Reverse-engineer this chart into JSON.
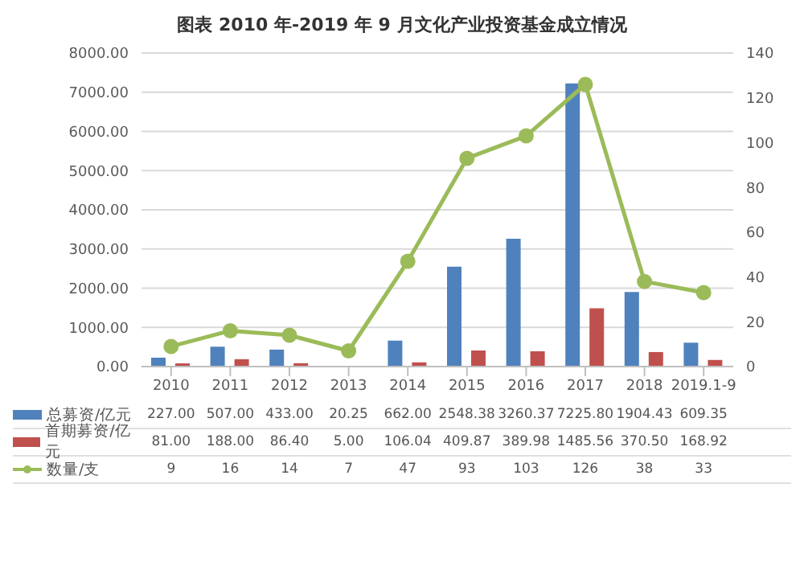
{
  "chart_data": {
    "type": "bar",
    "title": "图表  2010 年-2019 年 9 月文化产业投资基金成立情况",
    "categories": [
      "2010",
      "2011",
      "2012",
      "2013",
      "2014",
      "2015",
      "2016",
      "2017",
      "2018",
      "2019.1-9"
    ],
    "series": [
      {
        "name": "总募资/亿元",
        "color": "#4f81bd",
        "values": [
          227.0,
          507.0,
          433.0,
          20.25,
          662.0,
          2548.38,
          3260.37,
          7225.8,
          1904.43,
          609.35
        ],
        "value_labels": [
          "227.00",
          "507.00",
          "433.00",
          "20.25",
          "662.00",
          "2548.38",
          "3260.37",
          "7225.80",
          "1904.43",
          "609.35"
        ]
      },
      {
        "name": "首期募资/亿元",
        "color": "#c0504d",
        "values": [
          81.0,
          188.0,
          86.4,
          5.0,
          106.04,
          409.87,
          389.98,
          1485.56,
          370.5,
          168.92
        ],
        "value_labels": [
          "81.00",
          "188.00",
          "86.40",
          "5.00",
          "106.04",
          "409.87",
          "389.98",
          "1485.56",
          "370.50",
          "168.92"
        ]
      },
      {
        "name": "数量/支",
        "type": "line",
        "axis": "y2",
        "color": "#9bbb59",
        "values": [
          9,
          16,
          14,
          7,
          47,
          93,
          103,
          126,
          38,
          33
        ]
      }
    ],
    "ylim": [
      0,
      8000
    ],
    "yticks": [
      {
        "value": 0,
        "label": "0.00"
      },
      {
        "value": 1000,
        "label": "1000.00"
      },
      {
        "value": 2000,
        "label": "2000.00"
      },
      {
        "value": 3000,
        "label": "3000.00"
      },
      {
        "value": 4000,
        "label": "4000.00"
      },
      {
        "value": 5000,
        "label": "5000.00"
      },
      {
        "value": 6000,
        "label": "6000.00"
      },
      {
        "value": 7000,
        "label": "7000.00"
      },
      {
        "value": 8000,
        "label": "8000.00"
      }
    ],
    "y2lim": [
      0,
      140
    ],
    "y2ticks": [
      0,
      20,
      40,
      60,
      80,
      100,
      120,
      140
    ],
    "grid": "y",
    "legend": "bottom",
    "marker": "circle",
    "data_labels": true
  }
}
